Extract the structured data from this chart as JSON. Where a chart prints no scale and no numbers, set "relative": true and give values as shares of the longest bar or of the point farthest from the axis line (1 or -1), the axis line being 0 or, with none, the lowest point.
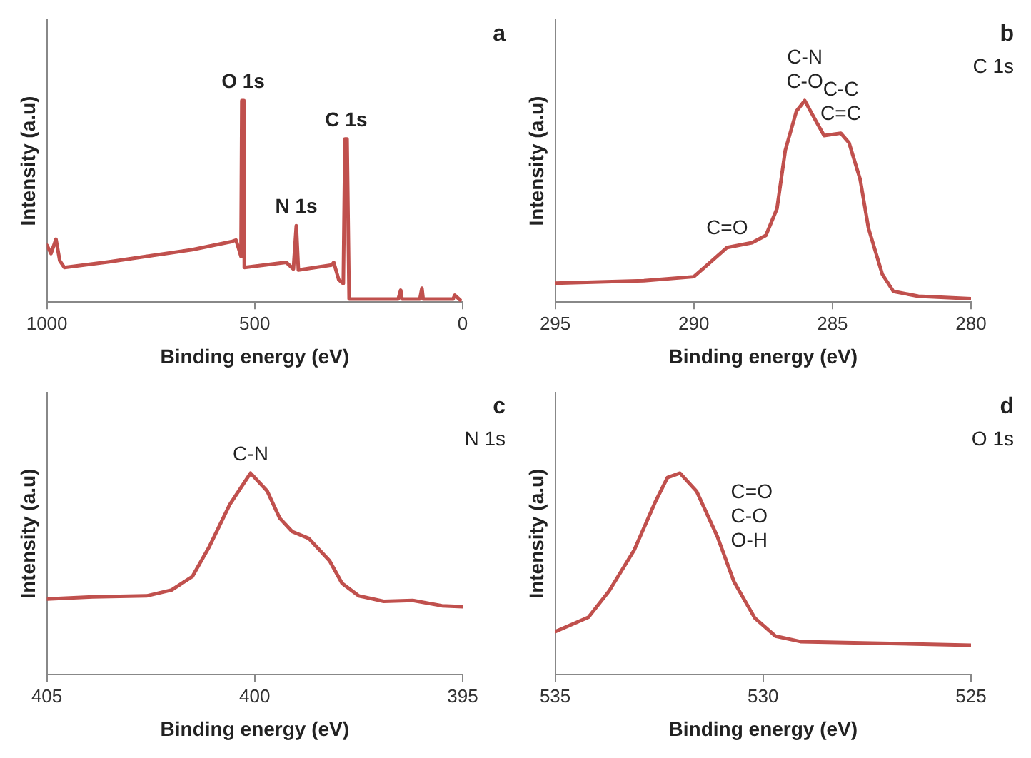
{
  "chart_data": [
    {
      "type": "line",
      "relative": true,
      "xlabel": "Binding energy (eV)",
      "ylabel": "Intensity (a.u)",
      "xlim": [
        1000,
        0
      ],
      "xticks": [
        1000,
        500,
        0
      ],
      "tick_labels": "x",
      "grid": false,
      "legend": false,
      "marker": "none",
      "line_style": "solid",
      "annotations": [
        "a",
        {
          "text": "O 1s",
          "x": 528,
          "y": 1
        },
        {
          "text": "N 1s",
          "x": 400,
          "y": 0.379
        },
        {
          "text": "C 1s",
          "x": 280,
          "y": 0.809
        }
      ],
      "series": [
        {
          "color": "#c0504d",
          "x": [
            1000,
            990,
            978,
            969,
            958,
            850,
            750,
            650,
            556,
            545,
            539,
            533,
            531,
            526,
            525,
            424,
            407,
            400,
            395,
            315,
            310,
            298,
            287,
            283,
            278,
            273,
            155,
            149,
            146,
            103,
            98,
            95,
            23,
            19,
            6
          ],
          "values": [
            0.283,
            0.241,
            0.312,
            0.206,
            0.172,
            0.2,
            0.23,
            0.26,
            0.3,
            0.308,
            0.268,
            0.226,
            1,
            1,
            0.172,
            0.197,
            0.164,
            0.379,
            0.159,
            0.184,
            0.197,
            0.111,
            0.092,
            0.809,
            0.809,
            0.015,
            0.015,
            0.059,
            0.015,
            0.015,
            0.069,
            0.015,
            0.015,
            0.034,
            0.01
          ]
        }
      ]
    },
    {
      "type": "line",
      "relative": true,
      "xlabel": "Binding energy (eV)",
      "ylabel": "Intensity (a.u)",
      "xlim": [
        295,
        280
      ],
      "xticks": [
        295,
        290,
        285,
        280
      ],
      "tick_labels": "x",
      "grid": false,
      "legend": false,
      "marker": "none",
      "line_style": "solid",
      "annotations": [
        "b",
        "C 1s",
        {
          "text": "C-N",
          "x": 286,
          "y": 1
        },
        {
          "text": "C-O",
          "x": 286,
          "y": 1
        },
        {
          "text": "C-C",
          "x": 284.7,
          "y": 0.838
        },
        {
          "text": "C=C",
          "x": 284.7,
          "y": 0.838
        },
        {
          "text": "C=O",
          "x": 288.8,
          "y": 0.271
        }
      ],
      "series": [
        {
          "color": "#c0504d",
          "x": [
            295,
            291.8,
            290.0,
            289.5,
            288.8,
            287.9,
            287.4,
            287.0,
            286.7,
            286.3,
            286.0,
            285.6,
            285.3,
            284.7,
            284.4,
            284.0,
            283.7,
            283.2,
            282.8,
            281.9,
            280
          ],
          "values": [
            0.094,
            0.106,
            0.126,
            0.186,
            0.271,
            0.295,
            0.331,
            0.464,
            0.754,
            0.947,
            1,
            0.899,
            0.826,
            0.838,
            0.79,
            0.609,
            0.367,
            0.138,
            0.053,
            0.029,
            0.017
          ]
        }
      ]
    },
    {
      "type": "line",
      "relative": true,
      "xlabel": "Binding energy (eV)",
      "ylabel": "Intensity (a.u)",
      "xlim": [
        405,
        395
      ],
      "xticks": [
        405,
        400,
        395
      ],
      "tick_labels": "x",
      "grid": false,
      "legend": false,
      "marker": "none",
      "line_style": "solid",
      "annotations": [
        "c",
        "N 1s",
        {
          "text": "C-N",
          "x": 400.1,
          "y": 1
        }
      ],
      "series": [
        {
          "color": "#c0504d",
          "x": [
            405,
            403.9,
            402.6,
            402.0,
            401.5,
            401.1,
            400.6,
            400.1,
            399.7,
            399.4,
            399.1,
            398.7,
            398.2,
            397.9,
            397.5,
            396.9,
            396.2,
            395.5,
            395
          ],
          "values": [
            0.375,
            0.386,
            0.391,
            0.42,
            0.487,
            0.632,
            0.844,
            1,
            0.911,
            0.777,
            0.71,
            0.676,
            0.565,
            0.453,
            0.391,
            0.364,
            0.368,
            0.342,
            0.337
          ]
        }
      ]
    },
    {
      "type": "line",
      "relative": true,
      "xlabel": "Binding energy (eV)",
      "ylabel": "Intensity (a.u)",
      "xlim": [
        535,
        525
      ],
      "xticks": [
        535,
        530,
        525
      ],
      "tick_labels": "x",
      "grid": false,
      "legend": false,
      "marker": "none",
      "line_style": "solid",
      "annotations": [
        "d",
        "O 1s",
        {
          "text": "C=O",
          "x": 531.6,
          "y": 0.91
        },
        {
          "text": "C-O",
          "x": 531.6,
          "y": 0.91
        },
        {
          "text": "O-H",
          "x": 531.6,
          "y": 0.91
        }
      ],
      "series": [
        {
          "color": "#c0504d",
          "x": [
            535,
            534.2,
            533.7,
            533.1,
            532.6,
            532.3,
            532.0,
            531.6,
            531.1,
            530.7,
            530.2,
            529.7,
            529.1,
            527.4,
            525
          ],
          "values": [
            0.213,
            0.285,
            0.416,
            0.618,
            0.854,
            0.978,
            1,
            0.91,
            0.685,
            0.461,
            0.281,
            0.191,
            0.164,
            0.157,
            0.146
          ]
        }
      ]
    }
  ]
}
